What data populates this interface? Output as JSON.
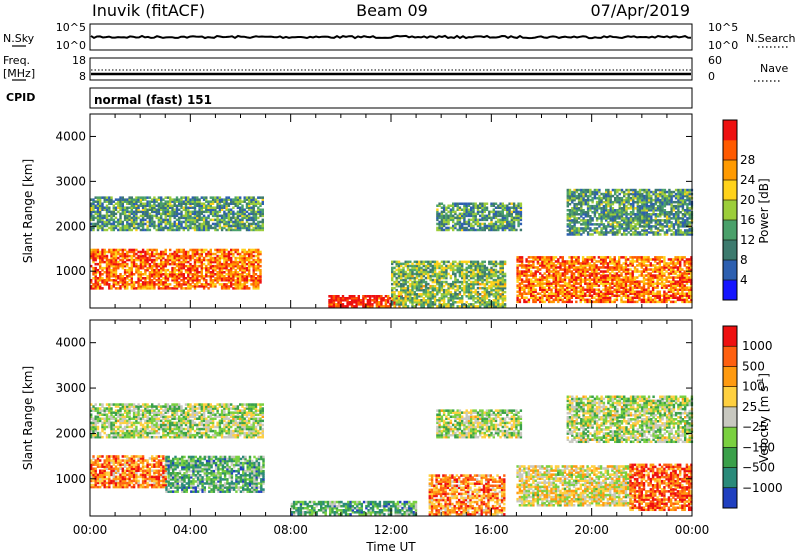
{
  "header": {
    "station": "Inuvik (fitACF)",
    "beam": "Beam 09",
    "date": "07/Apr/2019"
  },
  "summary_panels": {
    "noise": {
      "left_label": "N.Sky",
      "right_label": "N.Search",
      "left_ticks": [
        "10^5",
        "10^0"
      ],
      "right_ticks": [
        "10^5",
        "10^0"
      ]
    },
    "freq": {
      "left_label_line1": "Freq.",
      "left_label_line2": "[MHz]",
      "right_label": "Nave",
      "left_ticks": [
        "18",
        "8"
      ],
      "right_ticks": [
        "60",
        "0"
      ]
    },
    "cpid": {
      "label": "CPID",
      "text": "normal (fast) 151"
    }
  },
  "chart_data": [
    {
      "type": "heatmap",
      "name": "power",
      "ylabel": "Slant Range [km]",
      "xlabel": "",
      "xlim": [
        0,
        24
      ],
      "ylim": [
        180,
        4500
      ],
      "y_ticks": [
        "1000",
        "2000",
        "3000",
        "4000"
      ],
      "colorbar_label": "Power [dB]",
      "colorbar_ticks": [
        "4",
        "8",
        "12",
        "16",
        "20",
        "24",
        "28"
      ],
      "colorbar_colors": [
        "#1515ff",
        "#2d5fb0",
        "#3d7a6e",
        "#4aa06a",
        "#9ccd3a",
        "#ffd21a",
        "#ff9a00",
        "#ff5a00",
        "#ee1010"
      ],
      "echo_bands": [
        {
          "t_start": 0.0,
          "t_end": 6.8,
          "range_lo": 600,
          "range_hi": 1500,
          "level": 0.8
        },
        {
          "t_start": 0.0,
          "t_end": 6.9,
          "range_lo": 1900,
          "range_hi": 2650,
          "level": 0.35
        },
        {
          "t_start": 9.5,
          "t_end": 12.5,
          "range_lo": 200,
          "range_hi": 450,
          "level": 0.95
        },
        {
          "t_start": 12.0,
          "t_end": 16.5,
          "range_lo": 200,
          "range_hi": 1200,
          "level": 0.45
        },
        {
          "t_start": 13.8,
          "t_end": 17.2,
          "range_lo": 1900,
          "range_hi": 2500,
          "level": 0.35
        },
        {
          "t_start": 17.0,
          "t_end": 24.0,
          "range_lo": 300,
          "range_hi": 1300,
          "level": 0.8
        },
        {
          "t_start": 19.0,
          "t_end": 24.0,
          "range_lo": 1800,
          "range_hi": 2800,
          "level": 0.35
        }
      ]
    },
    {
      "type": "heatmap",
      "name": "velocity",
      "ylabel": "Slant Range [km]",
      "xlabel": "Time UT",
      "xlim": [
        0,
        24
      ],
      "ylim": [
        180,
        4500
      ],
      "x_ticks": [
        "00:00",
        "04:00",
        "08:00",
        "12:00",
        "16:00",
        "20:00",
        "00:00"
      ],
      "y_ticks": [
        "1000",
        "2000",
        "3000",
        "4000"
      ],
      "colorbar_label": "Velocity [m s",
      "colorbar_label_sup": "-1",
      "colorbar_label_end": "]",
      "colorbar_ticks": [
        "1000",
        "500",
        "100",
        "25",
        "−25",
        "−100",
        "−500",
        "−1000"
      ],
      "colorbar_colors": [
        "#2040c0",
        "#2a8a7a",
        "#3aa04a",
        "#7ad040",
        "#c8c8c0",
        "#ffd040",
        "#ff9a10",
        "#ff6010",
        "#ee1010"
      ],
      "echo_bands": [
        {
          "t_start": 0.0,
          "t_end": 3.0,
          "range_lo": 800,
          "range_hi": 1500,
          "level": 0.75
        },
        {
          "t_start": 3.0,
          "t_end": 6.9,
          "range_lo": 700,
          "range_hi": 1500,
          "level": 0.3
        },
        {
          "t_start": 0.0,
          "t_end": 6.9,
          "range_lo": 1900,
          "range_hi": 2650,
          "level": 0.45
        },
        {
          "t_start": 8.0,
          "t_end": 13.0,
          "range_lo": 200,
          "range_hi": 500,
          "level": 0.3
        },
        {
          "t_start": 13.5,
          "t_end": 16.5,
          "range_lo": 200,
          "range_hi": 1100,
          "level": 0.75
        },
        {
          "t_start": 13.8,
          "t_end": 17.2,
          "range_lo": 1900,
          "range_hi": 2500,
          "level": 0.45
        },
        {
          "t_start": 17.0,
          "t_end": 21.5,
          "range_lo": 400,
          "range_hi": 1300,
          "level": 0.55
        },
        {
          "t_start": 21.5,
          "t_end": 24.0,
          "range_lo": 300,
          "range_hi": 1300,
          "level": 0.85
        },
        {
          "t_start": 19.0,
          "t_end": 24.0,
          "range_lo": 1800,
          "range_hi": 2800,
          "level": 0.45
        }
      ]
    }
  ]
}
